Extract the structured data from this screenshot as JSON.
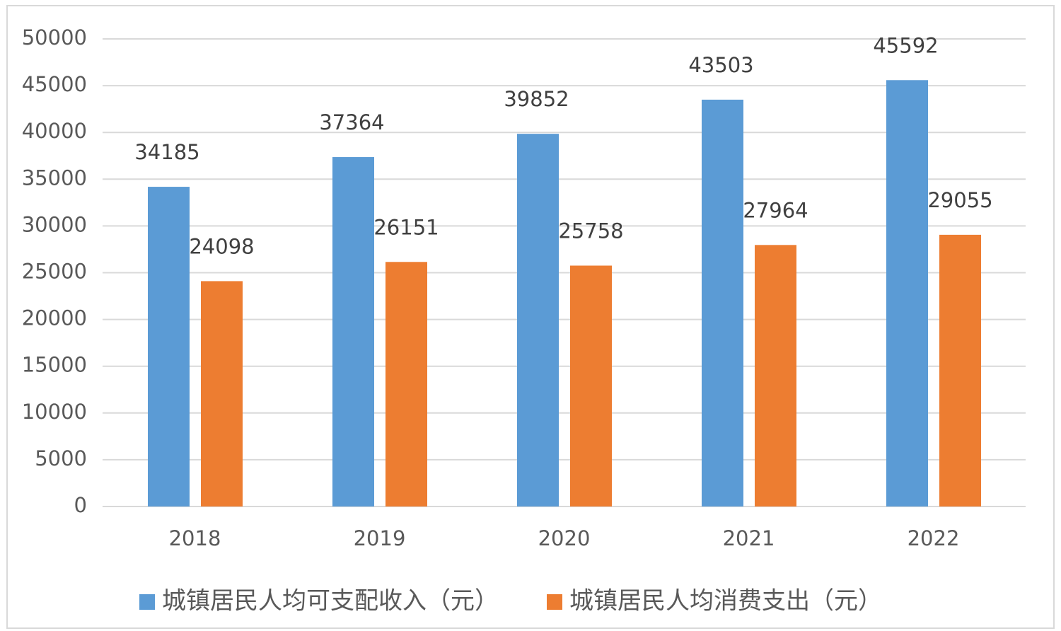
{
  "chart_data": {
    "type": "bar",
    "categories": [
      "2018",
      "2019",
      "2020",
      "2021",
      "2022"
    ],
    "series": [
      {
        "name": "城镇居民人均可支配收入（元）",
        "color": "#5b9bd5",
        "values": [
          34185,
          37364,
          39852,
          43503,
          45592
        ]
      },
      {
        "name": "城镇居民人均消费支出（元）",
        "color": "#ed7d31",
        "values": [
          24098,
          26151,
          25758,
          27964,
          29055
        ]
      }
    ],
    "ylim": [
      0,
      50000
    ],
    "yticks": [
      0,
      5000,
      10000,
      15000,
      20000,
      25000,
      30000,
      35000,
      40000,
      45000,
      50000
    ],
    "grid": true
  }
}
